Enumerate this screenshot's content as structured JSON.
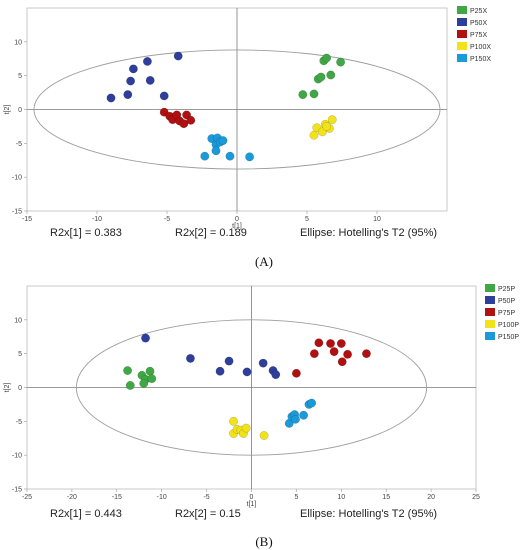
{
  "chart_data": [
    {
      "type": "scatter",
      "panel_label": "(A)",
      "xlabel": "t[1]",
      "ylabel": "t[2]",
      "xlim": [
        -15,
        15
      ],
      "ylim": [
        -15,
        15
      ],
      "xticks": [
        -15,
        -10,
        -5,
        0,
        5,
        10
      ],
      "yticks": [
        -15,
        -10,
        -5,
        0,
        5,
        10
      ],
      "ellipse": {
        "rx": 14.5,
        "ry": 8.8
      },
      "legend_position": "top-right",
      "annotations": [
        "R2x[1] = 0.383",
        "R2x[2] = 0.189",
        "Ellipse: Hotelling's T2 (95%)"
      ],
      "series": [
        {
          "name": "P25X",
          "color": "#3fa845",
          "points": [
            [
              4.7,
              2.2
            ],
            [
              5.5,
              2.3
            ],
            [
              5.8,
              4.5
            ],
            [
              6.0,
              4.8
            ],
            [
              6.2,
              7.2
            ],
            [
              6.4,
              7.6
            ],
            [
              6.7,
              5.1
            ],
            [
              7.4,
              7.0
            ]
          ]
        },
        {
          "name": "P50X",
          "color": "#2e3e9c",
          "points": [
            [
              -9.0,
              1.7
            ],
            [
              -7.8,
              2.2
            ],
            [
              -7.6,
              4.2
            ],
            [
              -7.4,
              6.0
            ],
            [
              -6.4,
              7.1
            ],
            [
              -6.2,
              4.3
            ],
            [
              -5.2,
              2.0
            ],
            [
              -4.2,
              7.9
            ]
          ]
        },
        {
          "name": "P75X",
          "color": "#b01010",
          "points": [
            [
              -5.2,
              -0.4
            ],
            [
              -4.8,
              -1.0
            ],
            [
              -4.6,
              -1.5
            ],
            [
              -4.3,
              -0.8
            ],
            [
              -4.1,
              -1.7
            ],
            [
              -3.8,
              -2.1
            ],
            [
              -3.6,
              -0.8
            ],
            [
              -3.3,
              -1.6
            ]
          ]
        },
        {
          "name": "P100X",
          "color": "#f2e21a",
          "points": [
            [
              5.5,
              -3.8
            ],
            [
              5.7,
              -2.7
            ],
            [
              6.1,
              -3.3
            ],
            [
              6.3,
              -2.2
            ],
            [
              6.6,
              -2.8
            ],
            [
              6.8,
              -1.5
            ],
            [
              6.4,
              -2.5
            ]
          ]
        },
        {
          "name": "P150X",
          "color": "#1a9ad9",
          "points": [
            [
              -1.8,
              -4.3
            ],
            [
              -1.5,
              -5.2
            ],
            [
              -1.4,
              -4.2
            ],
            [
              -1.2,
              -4.8
            ],
            [
              -1.0,
              -4.6
            ],
            [
              -1.5,
              -6.1
            ],
            [
              -2.3,
              -6.9
            ],
            [
              -0.5,
              -6.9
            ],
            [
              0.9,
              -7.0
            ]
          ]
        }
      ]
    },
    {
      "type": "scatter",
      "panel_label": "(B)",
      "xlabel": "t[1]",
      "ylabel": "t[2]",
      "xlim": [
        -25,
        25
      ],
      "ylim": [
        -15,
        15
      ],
      "xticks": [
        -25,
        -20,
        -15,
        -10,
        -5,
        0,
        5,
        10,
        15,
        20,
        25
      ],
      "yticks": [
        -15,
        -10,
        -5,
        0,
        5,
        10
      ],
      "ellipse": {
        "rx": 19.5,
        "ry": 10.0
      },
      "legend_position": "top-right",
      "annotations": [
        "R2x[1] = 0.443",
        "R2x[2] = 0.15",
        "Ellipse: Hotelling's T2 (95%)"
      ],
      "series": [
        {
          "name": "P25P",
          "color": "#3fa845",
          "points": [
            [
              -13.8,
              2.5
            ],
            [
              -13.5,
              0.3
            ],
            [
              -12.2,
              1.8
            ],
            [
              -11.8,
              1.2
            ],
            [
              -12.0,
              0.6
            ],
            [
              -11.3,
              2.4
            ],
            [
              -11.1,
              1.3
            ]
          ]
        },
        {
          "name": "P50P",
          "color": "#2e3e9c",
          "points": [
            [
              -11.8,
              7.3
            ],
            [
              -6.8,
              4.3
            ],
            [
              -3.5,
              2.4
            ],
            [
              -2.5,
              3.9
            ],
            [
              -0.5,
              2.3
            ],
            [
              1.3,
              3.6
            ],
            [
              2.4,
              2.5
            ],
            [
              2.7,
              1.9
            ]
          ]
        },
        {
          "name": "P75P",
          "color": "#b01010",
          "points": [
            [
              5.0,
              2.1
            ],
            [
              7.0,
              5.0
            ],
            [
              7.5,
              6.6
            ],
            [
              8.8,
              6.5
            ],
            [
              9.2,
              5.3
            ],
            [
              10.0,
              6.5
            ],
            [
              10.1,
              3.8
            ],
            [
              10.7,
              4.9
            ],
            [
              12.8,
              5.0
            ]
          ]
        },
        {
          "name": "P100P",
          "color": "#f2e21a",
          "points": [
            [
              -2.0,
              -5.0
            ],
            [
              -2.0,
              -6.8
            ],
            [
              -1.6,
              -6.2
            ],
            [
              -1.2,
              -6.3
            ],
            [
              -0.9,
              -6.8
            ],
            [
              -0.6,
              -6.0
            ],
            [
              1.4,
              -7.1
            ]
          ]
        },
        {
          "name": "P150P",
          "color": "#1a9ad9",
          "points": [
            [
              4.2,
              -5.3
            ],
            [
              4.5,
              -4.3
            ],
            [
              4.8,
              -4.0
            ],
            [
              4.9,
              -4.7
            ],
            [
              5.8,
              -4.1
            ],
            [
              6.4,
              -2.5
            ],
            [
              6.7,
              -2.3
            ]
          ]
        }
      ]
    }
  ]
}
